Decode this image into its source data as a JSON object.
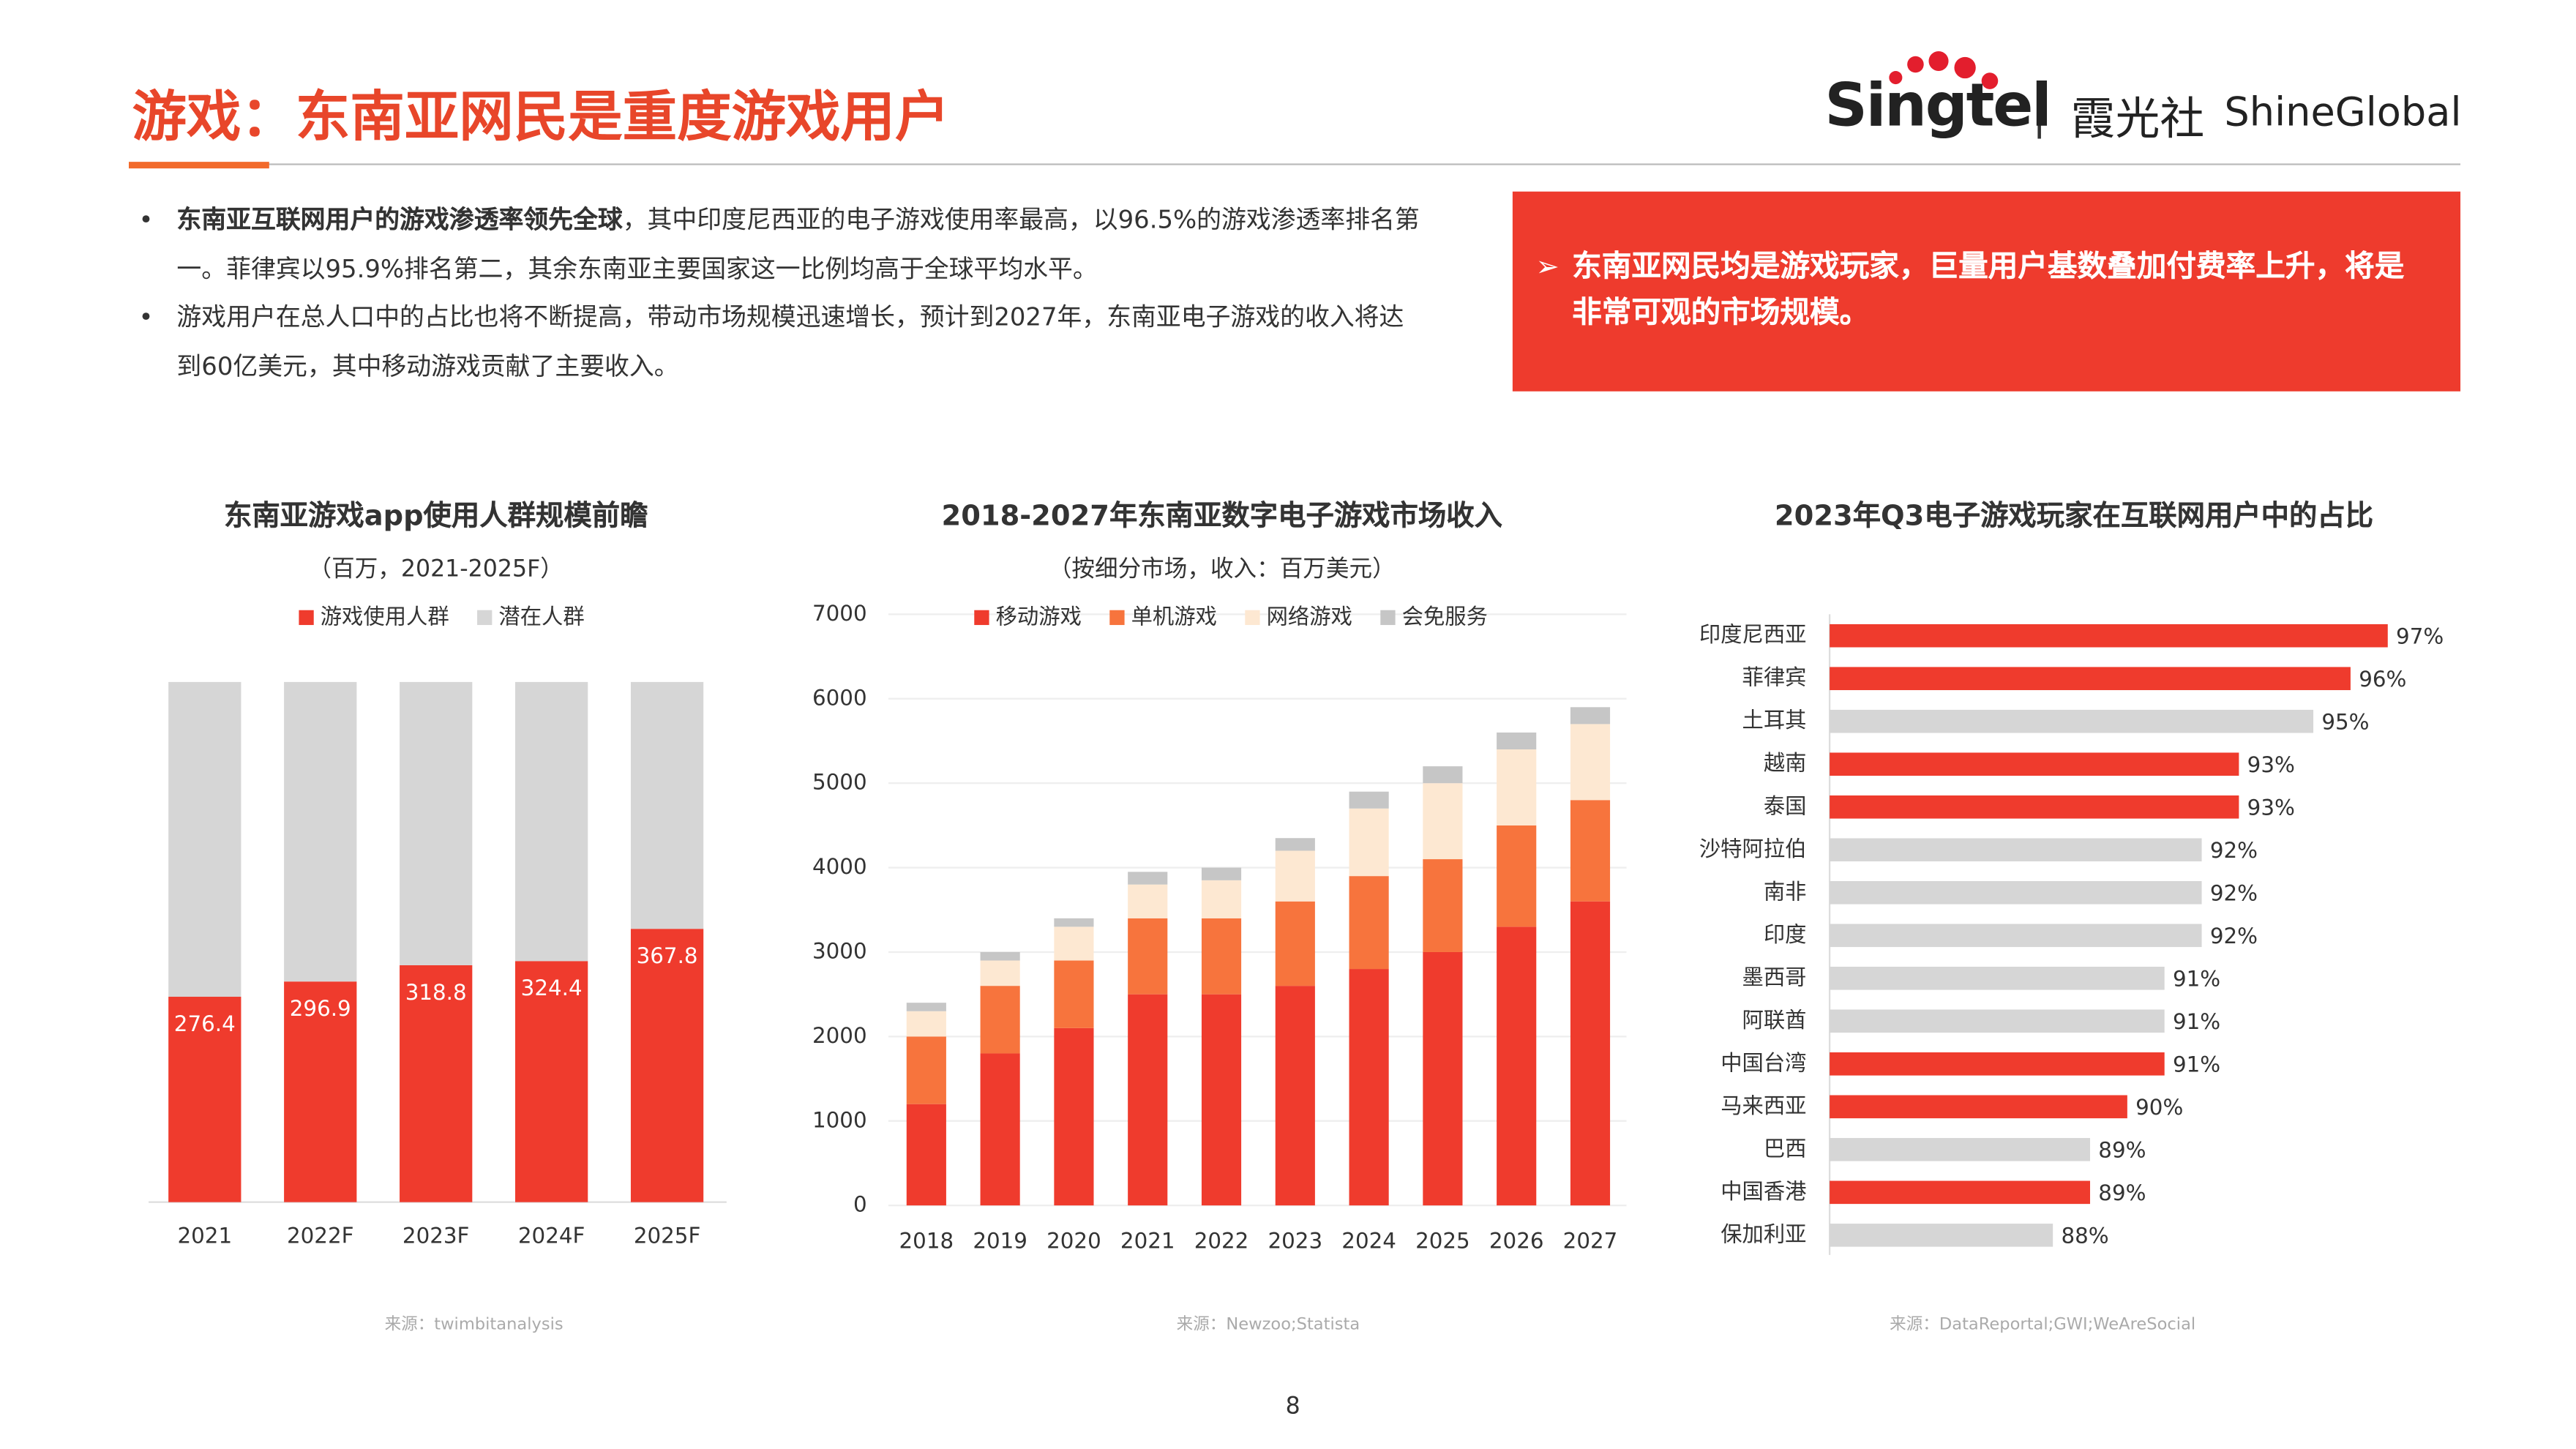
{
  "header": {
    "title": "游戏：东南亚网民是重度游戏用户"
  },
  "logo": {
    "brand": "Singtel",
    "partner_cn": "霞光社",
    "partner_en": "ShineGlobal"
  },
  "bullets": [
    {
      "bold": "东南亚互联网用户的游戏渗透率领先全球",
      "text": "，其中印度尼西亚的电子游戏使用率最高，以96.5%的游戏渗透率排名第一。菲律宾以95.9%排名第二，其余东南亚主要国家这一比例均高于全球平均水平。"
    },
    {
      "text": "游戏用户在总人口中的占比也将不断提高，带动市场规模迅速增长，预计到2027年，东南亚电子游戏的收入将达到60亿美元，其中移动游戏贡献了主要收入。"
    }
  ],
  "callout": "东南亚网民均是游戏玩家，巨量用户基数叠加付费率上升，将是非常可观的市场规模。",
  "chart_data": [
    {
      "type": "stacked_bar",
      "title": "东南亚游戏app使用人群规模前瞻",
      "subtitle": "（百万，2021-2025F）",
      "categories": [
        "2021",
        "2022F",
        "2023F",
        "2024F",
        "2025F"
      ],
      "series": [
        {
          "name": "游戏使用人群",
          "color": "#ef3b2d",
          "values": [
            276.4,
            296.9,
            318.8,
            324.4,
            367.8
          ]
        },
        {
          "name": "潜在人群",
          "color": "#d6d6d6",
          "values": [
            423.6,
            403.1,
            381.2,
            375.6,
            332.2
          ]
        }
      ],
      "source": "来源：twimbitanalysis"
    },
    {
      "type": "stacked_column",
      "title": "2018-2027年东南亚数字电子游戏市场收入",
      "subtitle": "（按细分市场，收入：百万美元）",
      "categories": [
        "2018",
        "2019",
        "2020",
        "2021",
        "2022",
        "2023",
        "2024",
        "2025",
        "2026",
        "2027"
      ],
      "series": [
        {
          "name": "移动游戏",
          "color": "#ef3b2d",
          "values": [
            1200,
            1800,
            2100,
            2500,
            2500,
            2600,
            2800,
            3000,
            3300,
            3600
          ]
        },
        {
          "name": "单机游戏",
          "color": "#f7743d",
          "values": [
            800,
            800,
            800,
            900,
            900,
            1000,
            1100,
            1100,
            1200,
            1200
          ]
        },
        {
          "name": "网络游戏",
          "color": "#fde8d2",
          "values": [
            300,
            300,
            400,
            400,
            450,
            600,
            800,
            900,
            900,
            900
          ]
        },
        {
          "name": "会免服务",
          "color": "#c6c6c6",
          "values": [
            100,
            100,
            100,
            150,
            150,
            150,
            200,
            200,
            200,
            200
          ]
        }
      ],
      "ylim": [
        0,
        7000
      ],
      "yticks": [
        0,
        1000,
        2000,
        3000,
        4000,
        5000,
        6000,
        7000
      ],
      "grid": true,
      "source": "来源：Newzoo;Statista"
    },
    {
      "type": "hbar",
      "title": "2023年Q3电子游戏玩家在互联网用户中的占比",
      "categories": [
        "印度尼西亚",
        "菲律宾",
        "土耳其",
        "越南",
        "泰国",
        "沙特阿拉伯",
        "南非",
        "印度",
        "墨西哥",
        "阿联酋",
        "中国台湾",
        "马来西亚",
        "巴西",
        "中国香港",
        "保加利亚"
      ],
      "values": [
        97,
        96,
        95,
        93,
        93,
        92,
        92,
        92,
        91,
        91,
        91,
        90,
        89,
        89,
        88
      ],
      "value_labels": [
        "97%",
        "96%",
        "95%",
        "93%",
        "93%",
        "92%",
        "92%",
        "92%",
        "91%",
        "91%",
        "91%",
        "90%",
        "89%",
        "89%",
        "88%"
      ],
      "colors": [
        "#ef3b2d",
        "#ef3b2d",
        "#d6d6d6",
        "#ef3b2d",
        "#ef3b2d",
        "#d6d6d6",
        "#d6d6d6",
        "#d6d6d6",
        "#d6d6d6",
        "#d6d6d6",
        "#ef3b2d",
        "#ef3b2d",
        "#d6d6d6",
        "#ef3b2d",
        "#d6d6d6"
      ],
      "xlim": [
        82,
        97
      ],
      "source": "来源：DataReportal;GWI;WeAreSocial"
    }
  ],
  "page_number": "8"
}
